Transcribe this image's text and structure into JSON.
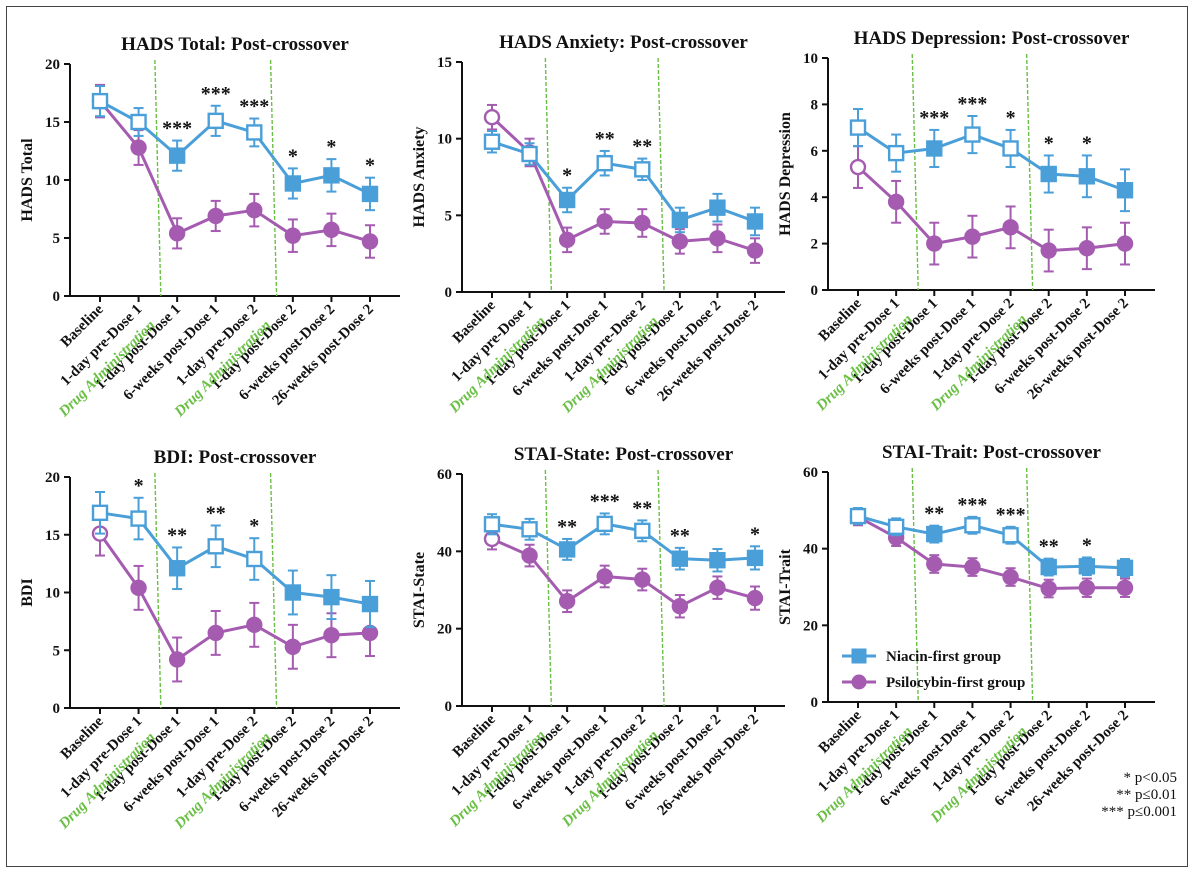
{
  "figure": {
    "x_categories": [
      "Baseline",
      "1-day pre-Dose 1",
      "1-day post-Dose 1",
      "6-weeks post-Dose 1",
      "1-day pre-Dose 2",
      "1-day post-Dose 2",
      "6-weeks post-Dose 2",
      "26-weeks post-Dose 2"
    ],
    "drug_admin_label": "Drug Administration",
    "colors": {
      "niacin": "#4a9fd8",
      "psilocybin": "#a45bb0",
      "drug_line": "#6abf45"
    },
    "legend": {
      "niacin": "Niacin-first group",
      "psilocybin": "Psilocybin-first group"
    },
    "significance_legend": [
      "* p<0.05",
      "** p≤0.01",
      "*** p≤0.001"
    ]
  },
  "chart_data": [
    {
      "type": "line",
      "title": "HADS Total: Post-crossover",
      "ylabel": "HADS Total",
      "ylim": [
        0,
        20
      ],
      "yticks": [
        0,
        5,
        10,
        15,
        20
      ],
      "categories": [
        "Baseline",
        "1-day pre-Dose 1",
        "1-day post-Dose 1",
        "6-weeks post-Dose 1",
        "1-day pre-Dose 2",
        "1-day post-Dose 2",
        "6-weeks post-Dose 2",
        "26-weeks post-Dose 2"
      ],
      "series": [
        {
          "name": "Niacin-first group",
          "values": [
            16.8,
            15.0,
            12.1,
            15.1,
            14.1,
            9.7,
            10.4,
            8.8
          ],
          "errors": [
            1.3,
            1.2,
            1.3,
            1.3,
            1.2,
            1.3,
            1.4,
            1.4
          ]
        },
        {
          "name": "Psilocybin-first group",
          "values": [
            16.8,
            12.8,
            5.4,
            6.9,
            7.4,
            5.2,
            5.7,
            4.7
          ],
          "errors": [
            1.4,
            1.5,
            1.3,
            1.3,
            1.4,
            1.4,
            1.4,
            1.4
          ]
        }
      ],
      "significance": [
        "",
        "",
        "***",
        "***",
        "***",
        "*",
        "*",
        "*"
      ]
    },
    {
      "type": "line",
      "title": "HADS Anxiety: Post-crossover",
      "ylabel": "HADS Anxiety",
      "ylim": [
        0,
        15
      ],
      "yticks": [
        0,
        5,
        10,
        15
      ],
      "categories": [
        "Baseline",
        "1-day pre-Dose 1",
        "1-day post-Dose 1",
        "6-weeks post-Dose 1",
        "1-day pre-Dose 2",
        "1-day post-Dose 2",
        "6-weeks post-Dose 2",
        "26-weeks post-Dose 2"
      ],
      "series": [
        {
          "name": "Niacin-first group",
          "values": [
            9.8,
            9.0,
            6.0,
            8.4,
            8.0,
            4.7,
            5.5,
            4.6
          ],
          "errors": [
            0.7,
            0.7,
            0.8,
            0.8,
            0.7,
            0.8,
            0.9,
            0.9
          ]
        },
        {
          "name": "Psilocybin-first group",
          "values": [
            11.4,
            9.1,
            3.4,
            4.6,
            4.5,
            3.3,
            3.5,
            2.7
          ],
          "errors": [
            0.8,
            0.9,
            0.8,
            0.8,
            0.9,
            0.8,
            0.9,
            0.8
          ]
        }
      ],
      "significance": [
        "",
        "",
        "*",
        "**",
        "**",
        "",
        "",
        ""
      ]
    },
    {
      "type": "line",
      "title": "HADS Depression: Post-crossover",
      "ylabel": "HADS Depression",
      "ylim": [
        0,
        10
      ],
      "yticks": [
        0,
        2,
        4,
        6,
        8,
        10
      ],
      "categories": [
        "Baseline",
        "1-day pre-Dose 1",
        "1-day post-Dose 1",
        "6-weeks post-Dose 1",
        "1-day pre-Dose 2",
        "1-day post-Dose 2",
        "6-weeks post-Dose 2",
        "26-weeks post-Dose 2"
      ],
      "series": [
        {
          "name": "Niacin-first group",
          "values": [
            7.0,
            5.9,
            6.1,
            6.7,
            6.1,
            5.0,
            4.9,
            4.3
          ],
          "errors": [
            0.8,
            0.8,
            0.8,
            0.8,
            0.8,
            0.8,
            0.9,
            0.9
          ]
        },
        {
          "name": "Psilocybin-first group",
          "values": [
            5.3,
            3.8,
            2.0,
            2.3,
            2.7,
            1.7,
            1.8,
            2.0
          ],
          "errors": [
            0.9,
            0.9,
            0.9,
            0.9,
            0.9,
            0.9,
            0.9,
            0.9
          ]
        }
      ],
      "significance": [
        "",
        "",
        "***",
        "***",
        "*",
        "*",
        "*",
        ""
      ]
    },
    {
      "type": "line",
      "title": "BDI: Post-crossover",
      "ylabel": "BDI",
      "ylim": [
        0,
        20
      ],
      "yticks": [
        0,
        5,
        10,
        15,
        20
      ],
      "categories": [
        "Baseline",
        "1-day pre-Dose 1",
        "1-day post-Dose 1",
        "6-weeks post-Dose 1",
        "1-day pre-Dose 2",
        "1-day post-Dose 2",
        "6-weeks post-Dose 2",
        "26-weeks post-Dose 2"
      ],
      "series": [
        {
          "name": "Niacin-first group",
          "values": [
            16.9,
            16.4,
            12.1,
            14.0,
            12.9,
            10.0,
            9.6,
            9.0
          ],
          "errors": [
            1.8,
            1.8,
            1.8,
            1.8,
            1.8,
            1.9,
            1.9,
            2.0
          ]
        },
        {
          "name": "Psilocybin-first group",
          "values": [
            15.1,
            10.4,
            4.2,
            6.5,
            7.2,
            5.3,
            6.3,
            6.5
          ],
          "errors": [
            1.9,
            1.9,
            1.9,
            1.9,
            1.9,
            1.9,
            1.9,
            2.0
          ]
        }
      ],
      "significance": [
        "",
        "*",
        "**",
        "**",
        "*",
        "",
        "",
        ""
      ]
    },
    {
      "type": "line",
      "title": "STAI-State: Post-crossover",
      "ylabel": "STAI-State",
      "ylim": [
        0,
        60
      ],
      "yticks": [
        0,
        20,
        40,
        60
      ],
      "categories": [
        "Baseline",
        "1-day pre-Dose 1",
        "1-day post-Dose 1",
        "6-weeks post-Dose 1",
        "1-day pre-Dose 2",
        "1-day post-Dose 2",
        "6-weeks post-Dose 2",
        "26-weeks post-Dose 2"
      ],
      "series": [
        {
          "name": "Niacin-first group",
          "values": [
            47,
            45.7,
            40.5,
            47.1,
            45.3,
            38.1,
            37.7,
            38.3
          ],
          "errors": [
            2.6,
            2.7,
            2.7,
            2.7,
            2.7,
            2.8,
            2.9,
            3.0
          ]
        },
        {
          "name": "Psilocybin-first group",
          "values": [
            43.2,
            38.9,
            27.1,
            33.5,
            32.7,
            25.8,
            30.6,
            27.9
          ],
          "errors": [
            2.7,
            2.8,
            2.8,
            2.8,
            2.8,
            2.9,
            2.9,
            3.0
          ]
        }
      ],
      "significance": [
        "",
        "",
        "**",
        "***",
        "**",
        "**",
        "",
        "*"
      ]
    },
    {
      "type": "line",
      "title": "STAI-Trait: Post-crossover",
      "ylabel": "STAI-Trait",
      "ylim": [
        0,
        60
      ],
      "yticks": [
        0,
        20,
        40,
        60
      ],
      "categories": [
        "Baseline",
        "1-day pre-Dose 1",
        "1-day post-Dose 1",
        "6-weeks post-Dose 1",
        "1-day pre-Dose 2",
        "1-day post-Dose 2",
        "6-weeks post-Dose 2",
        "26-weeks post-Dose 2"
      ],
      "series": [
        {
          "name": "Niacin-first group",
          "values": [
            48.5,
            45.7,
            43.8,
            46.1,
            43.5,
            35.2,
            35.4,
            35.0
          ],
          "errors": [
            2.1,
            2.2,
            2.2,
            2.2,
            2.2,
            2.2,
            2.3,
            2.3
          ]
        },
        {
          "name": "Psilocybin-first group",
          "values": [
            48.3,
            42.9,
            36.0,
            35.2,
            32.6,
            29.6,
            29.8,
            29.8
          ],
          "errors": [
            2.2,
            2.2,
            2.3,
            2.3,
            2.3,
            2.3,
            2.4,
            2.4
          ]
        }
      ],
      "significance": [
        "",
        "",
        "**",
        "***",
        "***",
        "**",
        "*",
        ""
      ],
      "legend_position": "bottom-left"
    }
  ]
}
